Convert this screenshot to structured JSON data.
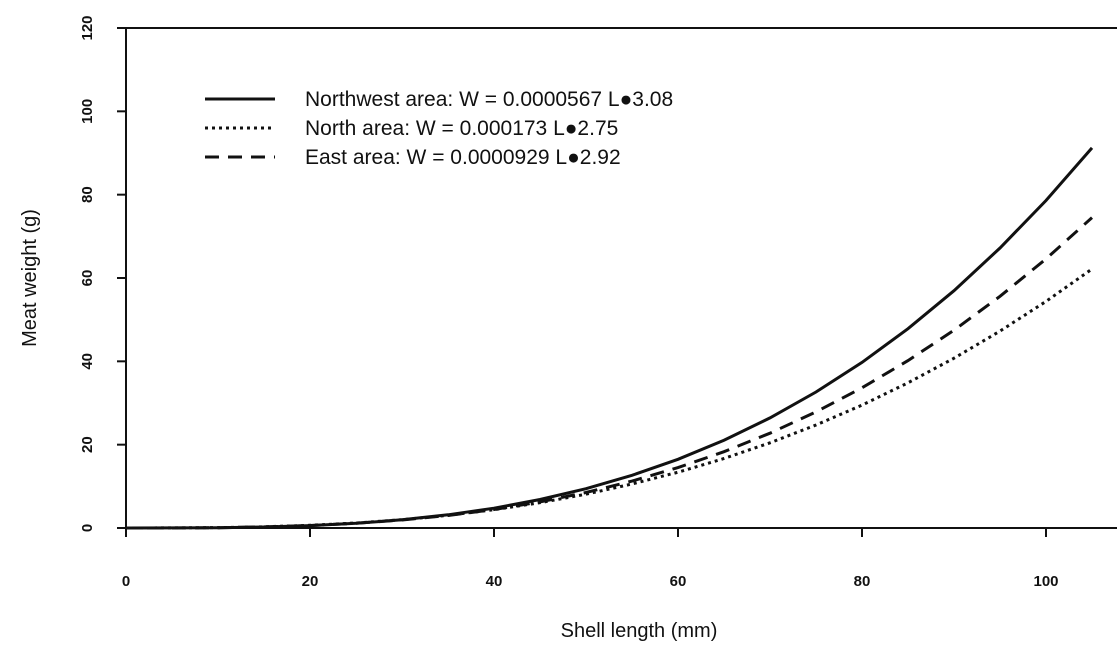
{
  "chart_data": {
    "type": "line",
    "title": "",
    "xlabel": "Shell length  (mm)",
    "ylabel": "Meat weight  (g)",
    "xlim": [
      0,
      110
    ],
    "ylim": [
      0,
      120
    ],
    "x_ticks": [
      0,
      20,
      40,
      60,
      80,
      100
    ],
    "y_ticks": [
      0,
      20,
      40,
      60,
      80,
      100,
      120
    ],
    "grid": false,
    "legend_position": "top-left",
    "x": [
      0,
      5,
      10,
      15,
      20,
      25,
      30,
      35,
      40,
      45,
      50,
      55,
      60,
      65,
      70,
      75,
      80,
      85,
      90,
      95,
      100,
      105
    ],
    "series": [
      {
        "name": "Northwest area:  W = 0.0000567 L●3.08",
        "line_style": "solid",
        "values": [
          0,
          0.02,
          0.07,
          0.24,
          0.57,
          1.13,
          1.97,
          3.16,
          4.76,
          6.84,
          9.44,
          12.64,
          16.5,
          21.07,
          26.43,
          32.63,
          39.74,
          47.83,
          56.96,
          67.19,
          78.59,
          91.23
        ]
      },
      {
        "name": "North area:  W = 0.000173 L●2.75",
        "line_style": "dotted",
        "values": [
          0,
          0.02,
          0.1,
          0.3,
          0.65,
          1.2,
          1.99,
          3.04,
          4.39,
          6.07,
          8.11,
          10.55,
          13.39,
          16.69,
          20.45,
          24.71,
          29.5,
          34.84,
          40.75,
          47.25,
          54.38,
          62.16
        ]
      },
      {
        "name": "East area:  W = 0.0000929 L●2.92",
        "line_style": "dashed",
        "values": [
          0,
          0.01,
          0.08,
          0.26,
          0.59,
          1.13,
          1.92,
          3.01,
          4.44,
          6.27,
          8.52,
          11.25,
          14.5,
          18.32,
          22.76,
          27.86,
          33.64,
          40.17,
          47.47,
          55.6,
          64.59,
          74.49
        ]
      }
    ]
  }
}
